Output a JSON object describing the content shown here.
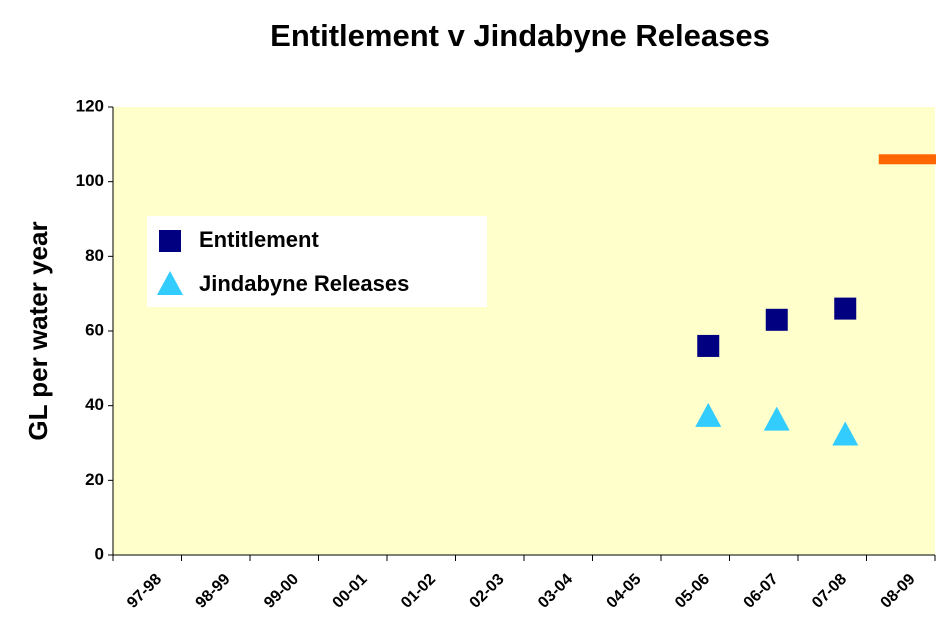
{
  "chart_data": {
    "type": "scatter",
    "title": "Entitlement v Jindabyne Releases",
    "y_label": "GL per water year",
    "categories": [
      "97-98",
      "98-99",
      "99-00",
      "00-01",
      "01-02",
      "02-03",
      "03-04",
      "04-05",
      "05-06",
      "06-07",
      "07-08",
      "08-09"
    ],
    "series": [
      {
        "name": "Entitlement",
        "color": "#000080",
        "marker": "square",
        "values": [
          null,
          null,
          null,
          null,
          null,
          null,
          null,
          null,
          56,
          63,
          66,
          null
        ]
      },
      {
        "name": "Jindabyne Releases",
        "color": "#33ccff",
        "marker": "triangle",
        "values": [
          null,
          null,
          null,
          null,
          null,
          null,
          null,
          null,
          37,
          36,
          32,
          null
        ]
      },
      {
        "color": "#ff6600",
        "marker": "dash",
        "values": [
          null,
          null,
          null,
          null,
          null,
          null,
          null,
          null,
          null,
          null,
          null,
          106
        ]
      }
    ],
    "ylim": [
      0,
      120
    ],
    "yticks": [
      0,
      20,
      40,
      60,
      80,
      100,
      120
    ],
    "plot_background": "#ffffcc"
  }
}
